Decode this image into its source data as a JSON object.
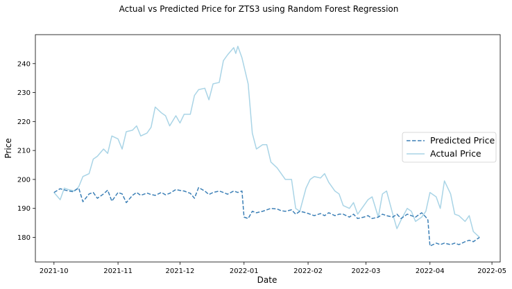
{
  "chart_data": {
    "type": "line",
    "title": "Actual vs Predicted Price for ZTS3 using Random Forest Regression",
    "xlabel": "Date",
    "ylabel": "Price",
    "ylim": [
      171.5,
      250
    ],
    "xlim": [
      "2021-09-22",
      "2022-05-05"
    ],
    "grid": false,
    "legend_position": "center-right",
    "x_ticks": [
      "2021-10",
      "2021-11",
      "2021-12",
      "2022-01",
      "2022-02",
      "2022-03",
      "2022-04",
      "2022-05"
    ],
    "y_ticks": [
      180,
      190,
      200,
      210,
      220,
      230,
      240
    ],
    "series": [
      {
        "name": "Predicted Price",
        "color": "#3b7fb6",
        "style": "dashed",
        "x": [
          "2021-10-01",
          "2021-10-04",
          "2021-10-07",
          "2021-10-10",
          "2021-10-13",
          "2021-10-15",
          "2021-10-18",
          "2021-10-20",
          "2021-10-22",
          "2021-10-25",
          "2021-10-27",
          "2021-10-29",
          "2021-11-01",
          "2021-11-03",
          "2021-11-05",
          "2021-11-08",
          "2021-11-10",
          "2021-11-12",
          "2021-11-15",
          "2021-11-17",
          "2021-11-19",
          "2021-11-22",
          "2021-11-24",
          "2021-11-26",
          "2021-11-29",
          "2021-12-01",
          "2021-12-03",
          "2021-12-06",
          "2021-12-08",
          "2021-12-10",
          "2021-12-13",
          "2021-12-15",
          "2021-12-17",
          "2021-12-20",
          "2021-12-22",
          "2021-12-24",
          "2021-12-27",
          "2021-12-29",
          "2021-12-31",
          "2022-01-01",
          "2022-01-03",
          "2022-01-05",
          "2022-01-07",
          "2022-01-10",
          "2022-01-12",
          "2022-01-14",
          "2022-01-17",
          "2022-01-19",
          "2022-01-21",
          "2022-01-24",
          "2022-01-26",
          "2022-01-28",
          "2022-01-31",
          "2022-02-02",
          "2022-02-04",
          "2022-02-07",
          "2022-02-09",
          "2022-02-11",
          "2022-02-14",
          "2022-02-16",
          "2022-02-18",
          "2022-02-21",
          "2022-02-23",
          "2022-02-25",
          "2022-02-28",
          "2022-03-02",
          "2022-03-04",
          "2022-03-07",
          "2022-03-09",
          "2022-03-11",
          "2022-03-14",
          "2022-03-16",
          "2022-03-18",
          "2022-03-21",
          "2022-03-23",
          "2022-03-25",
          "2022-03-28",
          "2022-03-30",
          "2022-03-31",
          "2022-04-01",
          "2022-04-04",
          "2022-04-06",
          "2022-04-08",
          "2022-04-11",
          "2022-04-13",
          "2022-04-15",
          "2022-04-18",
          "2022-04-20",
          "2022-04-22",
          "2022-04-25"
        ],
        "values": [
          195.5,
          196.8,
          196.2,
          195.8,
          197,
          192.3,
          195,
          195.5,
          193.5,
          195,
          196.3,
          192.5,
          195.5,
          195,
          192,
          194.5,
          195.5,
          194.5,
          195.3,
          194.8,
          194.5,
          195.5,
          194.7,
          195.2,
          196.5,
          196.2,
          196,
          195.2,
          193.5,
          197.2,
          196,
          194.8,
          195.5,
          196,
          195.5,
          194.9,
          196,
          195.5,
          196,
          187,
          186.5,
          189,
          188.5,
          189,
          189.5,
          190,
          189.8,
          189.2,
          189,
          189.5,
          188,
          189,
          188.5,
          188,
          187.5,
          188.2,
          187.5,
          188.5,
          187.5,
          188,
          188,
          187,
          188,
          186.5,
          187,
          187.5,
          186.5,
          187,
          188,
          187.5,
          187,
          188,
          186.5,
          188,
          187.5,
          187,
          188.5,
          187,
          186,
          177,
          178,
          177.5,
          178,
          177.5,
          178,
          177.5,
          178.5,
          179,
          178.5,
          180
        ]
      },
      {
        "name": "Actual Price",
        "color": "#a9d4e6",
        "style": "solid",
        "x": [
          "2021-10-01",
          "2021-10-04",
          "2021-10-06",
          "2021-10-08",
          "2021-10-11",
          "2021-10-13",
          "2021-10-15",
          "2021-10-18",
          "2021-10-20",
          "2021-10-22",
          "2021-10-25",
          "2021-10-27",
          "2021-10-29",
          "2021-11-01",
          "2021-11-03",
          "2021-11-05",
          "2021-11-08",
          "2021-11-10",
          "2021-11-12",
          "2021-11-15",
          "2021-11-17",
          "2021-11-19",
          "2021-11-22",
          "2021-11-24",
          "2021-11-26",
          "2021-11-29",
          "2021-12-01",
          "2021-12-03",
          "2021-12-06",
          "2021-12-08",
          "2021-12-10",
          "2021-12-13",
          "2021-12-15",
          "2021-12-17",
          "2021-12-20",
          "2021-12-22",
          "2021-12-24",
          "2021-12-27",
          "2021-12-28",
          "2021-12-29",
          "2021-12-30",
          "2021-12-31",
          "2022-01-03",
          "2022-01-05",
          "2022-01-07",
          "2022-01-10",
          "2022-01-12",
          "2022-01-14",
          "2022-01-17",
          "2022-01-19",
          "2022-01-21",
          "2022-01-24",
          "2022-01-26",
          "2022-01-28",
          "2022-01-31",
          "2022-02-02",
          "2022-02-04",
          "2022-02-07",
          "2022-02-09",
          "2022-02-11",
          "2022-02-14",
          "2022-02-16",
          "2022-02-18",
          "2022-02-21",
          "2022-02-23",
          "2022-02-25",
          "2022-02-28",
          "2022-03-02",
          "2022-03-04",
          "2022-03-07",
          "2022-03-09",
          "2022-03-11",
          "2022-03-14",
          "2022-03-16",
          "2022-03-18",
          "2022-03-21",
          "2022-03-23",
          "2022-03-25",
          "2022-03-28",
          "2022-03-30",
          "2022-04-01",
          "2022-04-04",
          "2022-04-06",
          "2022-04-08",
          "2022-04-11",
          "2022-04-13",
          "2022-04-15",
          "2022-04-18",
          "2022-04-20",
          "2022-04-22",
          "2022-04-25"
        ],
        "values": [
          195.5,
          193,
          197,
          196.5,
          196,
          197.5,
          201,
          202,
          207,
          208,
          210.5,
          209,
          215,
          214,
          210.5,
          216.5,
          217,
          218.5,
          215,
          216,
          218,
          225,
          223,
          222,
          218.5,
          222,
          219.5,
          222.5,
          222.5,
          229,
          231,
          231.5,
          227.5,
          233,
          233.5,
          241,
          243,
          245.5,
          243.5,
          246,
          244,
          242,
          233,
          216,
          210.5,
          212,
          212,
          206,
          204,
          202,
          200,
          200,
          190,
          189,
          197,
          200,
          201,
          200.5,
          202,
          199,
          196,
          195,
          191,
          190,
          192,
          188,
          191,
          193,
          194,
          187,
          195,
          196,
          188,
          183,
          186,
          190,
          189,
          185.5,
          187,
          189,
          195.5,
          194,
          190,
          199.5,
          195,
          188,
          187.5,
          185.5,
          187.5,
          182,
          180
        ]
      }
    ]
  }
}
